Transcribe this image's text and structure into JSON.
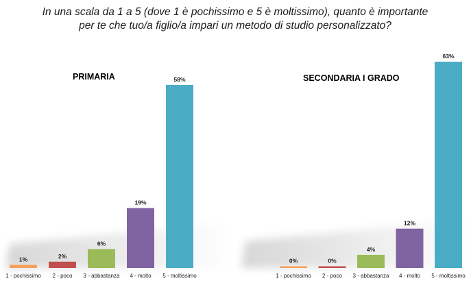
{
  "title": {
    "line1": "In una scala da 1 a 5 (dove 1 è pochissimo e 5 è moltissimo), quanto è importante",
    "line2": "per te che tuo/a figlio/a impari un metodo di studio personalizzato?"
  },
  "colors": [
    "#f5a05a",
    "#c0504d",
    "#9bbb59",
    "#8064a2",
    "#4bacc6"
  ],
  "chart_data": [
    {
      "type": "bar",
      "title": "PRIMARIA",
      "categories": [
        "1 - pochissimo",
        "2 - poco",
        "3 - abbastanza",
        "4 - molto",
        "5 - moltissimo"
      ],
      "values": [
        1,
        2,
        6,
        19,
        58
      ],
      "labels": [
        "1%",
        "2%",
        "6%",
        "19%",
        "58%"
      ],
      "unit": "%",
      "ylim": [
        0,
        63
      ],
      "grid": false,
      "legend": "none"
    },
    {
      "type": "bar",
      "title": "SECONDARIA I GRADO",
      "categories": [
        "1 - pochissimo",
        "2 - poco",
        "3 - abbastanza",
        "4 - molto",
        "5 - moltissimo"
      ],
      "values": [
        0,
        0,
        4,
        12,
        63
      ],
      "labels": [
        "0%",
        "0%",
        "4%",
        "12%",
        "63%"
      ],
      "unit": "%",
      "ylim": [
        0,
        63
      ],
      "grid": false,
      "legend": "none"
    }
  ]
}
